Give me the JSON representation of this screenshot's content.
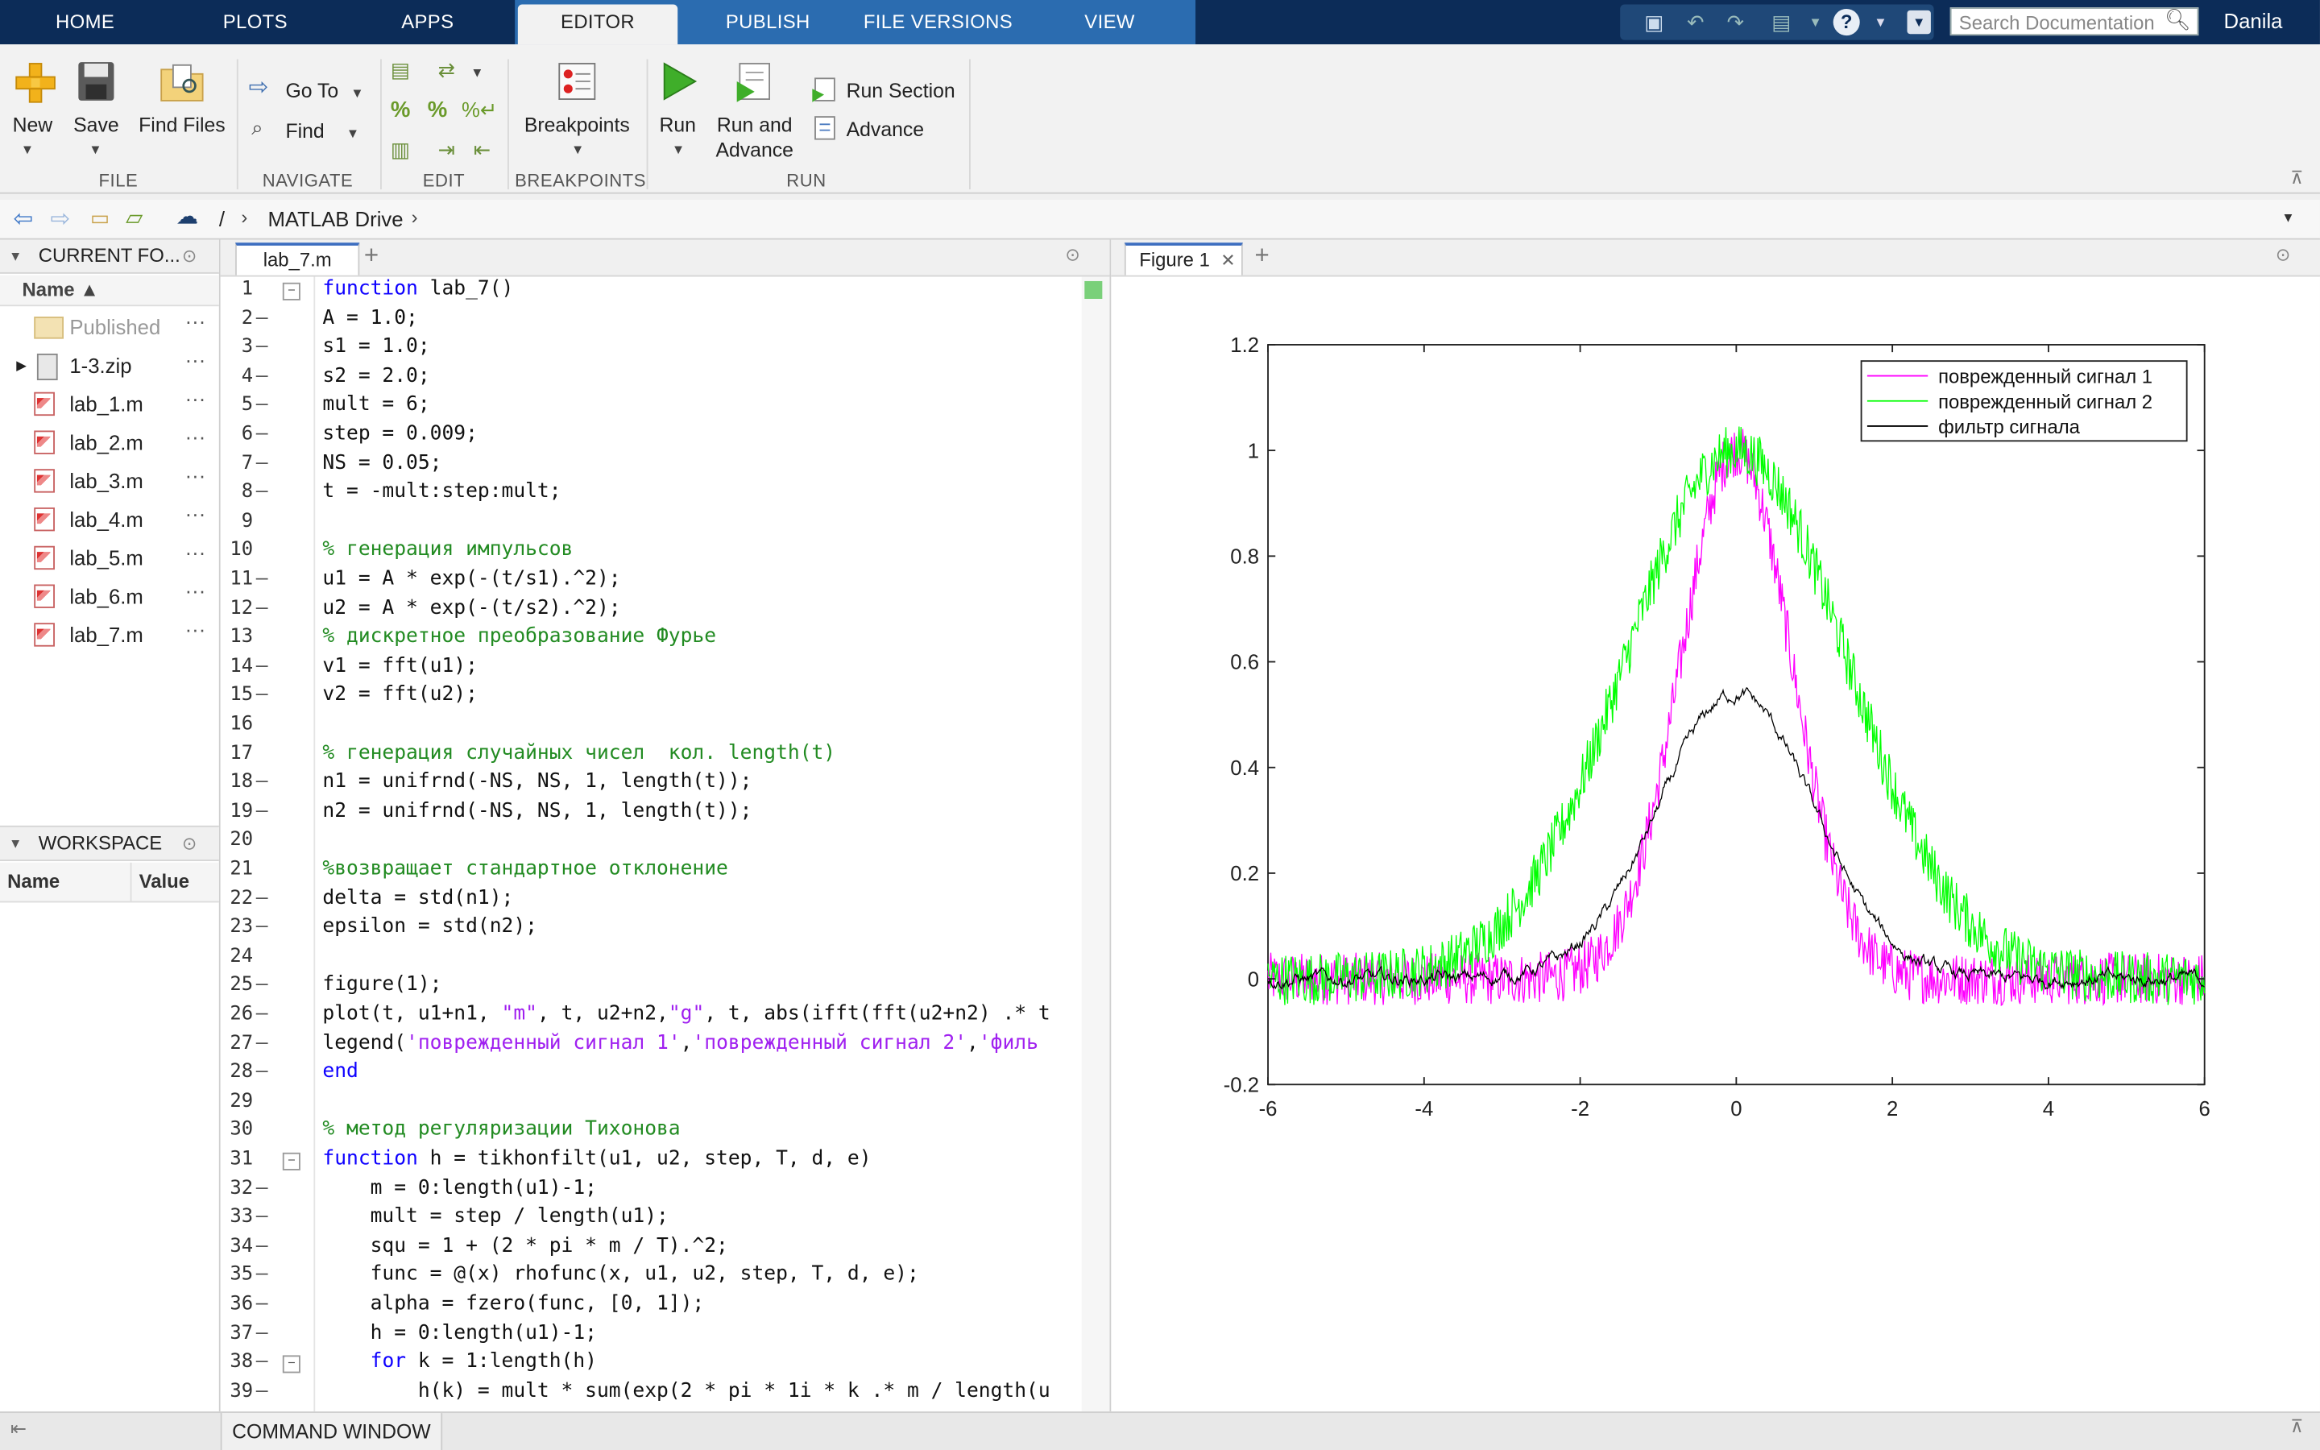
{
  "tabs": [
    "HOME",
    "PLOTS",
    "APPS",
    "EDITOR",
    "PUBLISH",
    "FILE VERSIONS",
    "VIEW"
  ],
  "active_tab": "EDITOR",
  "search_placeholder": "Search Documentation",
  "user": "Danila",
  "ribbon": {
    "new": "New",
    "save": "Save",
    "find_files": "Find Files",
    "go_to": "Go To",
    "find": "Find",
    "breakpoints": "Breakpoints",
    "run": "Run",
    "run_and_advance_1": "Run and",
    "run_and_advance_2": "Advance",
    "run_section": "Run Section",
    "advance": "Advance",
    "groups": [
      "FILE",
      "NAVIGATE",
      "EDIT",
      "BREAKPOINTS",
      "RUN"
    ]
  },
  "address": {
    "root": "/",
    "folder": "MATLAB Drive"
  },
  "current_folder": {
    "title": "CURRENT FO...",
    "col_name": "Name ▲",
    "files": [
      "Published",
      "1-3.zip",
      "lab_1.m",
      "lab_2.m",
      "lab_3.m",
      "lab_4.m",
      "lab_5.m",
      "lab_6.m",
      "lab_7.m"
    ]
  },
  "workspace": {
    "title": "WORKSPACE",
    "col_name": "Name",
    "col_value": "Value"
  },
  "editor": {
    "tab": "lab_7.m",
    "lines": [
      {
        "n": "1",
        "d": "",
        "html": "<span class='kw'>function</span> lab_7()"
      },
      {
        "n": "2",
        "d": "–",
        "html": "A = 1.0;"
      },
      {
        "n": "3",
        "d": "–",
        "html": "s1 = 1.0;"
      },
      {
        "n": "4",
        "d": "–",
        "html": "s2 = 2.0;"
      },
      {
        "n": "5",
        "d": "–",
        "html": "mult = 6;"
      },
      {
        "n": "6",
        "d": "–",
        "html": "step = 0.009;"
      },
      {
        "n": "7",
        "d": "–",
        "html": "NS = 0.05;"
      },
      {
        "n": "8",
        "d": "–",
        "html": "t = -mult:step:mult;"
      },
      {
        "n": "9",
        "d": "",
        "html": ""
      },
      {
        "n": "10",
        "d": "",
        "html": "<span class='cm'>% генерация импульсов</span>"
      },
      {
        "n": "11",
        "d": "–",
        "html": "u1 = A * exp(-(t/s1).^2);"
      },
      {
        "n": "12",
        "d": "–",
        "html": "u2 = A * exp(-(t/s2).^2);"
      },
      {
        "n": "13",
        "d": "",
        "html": "<span class='cm'>% дискретное преобразование Фурье</span>"
      },
      {
        "n": "14",
        "d": "–",
        "html": "v1 = fft(u1);"
      },
      {
        "n": "15",
        "d": "–",
        "html": "v2 = fft(u2);"
      },
      {
        "n": "16",
        "d": "",
        "html": ""
      },
      {
        "n": "17",
        "d": "",
        "html": "<span class='cm'>% генерация случайных чисел  кол. length(t)</span>"
      },
      {
        "n": "18",
        "d": "–",
        "html": "n1 = unifrnd(-NS, NS, 1, length(t));"
      },
      {
        "n": "19",
        "d": "–",
        "html": "n2 = unifrnd(-NS, NS, 1, length(t));"
      },
      {
        "n": "20",
        "d": "",
        "html": ""
      },
      {
        "n": "21",
        "d": "",
        "html": "<span class='cm'>%возвращает стандартное отклонение</span>"
      },
      {
        "n": "22",
        "d": "–",
        "html": "delta = std(n1);"
      },
      {
        "n": "23",
        "d": "–",
        "html": "epsilon = std(n2);"
      },
      {
        "n": "24",
        "d": "",
        "html": ""
      },
      {
        "n": "25",
        "d": "–",
        "html": "figure(1);"
      },
      {
        "n": "26",
        "d": "–",
        "html": "plot(t, u1+n1, <span class='st'>\"m\"</span>, t, u2+n2,<span class='st'>\"g\"</span>, t, abs(ifft(fft(u2+n2) .* t"
      },
      {
        "n": "27",
        "d": "–",
        "html": "legend(<span class='st'>'поврежденный сигнал 1'</span>,<span class='st'>'поврежденный сигнал 2'</span>,<span class='st'>'филь</span>"
      },
      {
        "n": "28",
        "d": "–",
        "html": "<span class='kw'>end</span>"
      },
      {
        "n": "29",
        "d": "",
        "html": ""
      },
      {
        "n": "30",
        "d": "",
        "html": "<span class='cm'>% метод регуляризации Тихонова</span>"
      },
      {
        "n": "31",
        "d": "",
        "html": "<span class='kw'>function</span> h = tikhonfilt(u1, u2, step, T, d, e)"
      },
      {
        "n": "32",
        "d": "–",
        "html": "    m = 0:length(u1)-1;"
      },
      {
        "n": "33",
        "d": "–",
        "html": "    mult = step / length(u1);"
      },
      {
        "n": "34",
        "d": "–",
        "html": "    squ = 1 + (2 * pi * m / T).^2;"
      },
      {
        "n": "35",
        "d": "–",
        "html": "    func = @(x) rhofunc(x, u1, u2, step, T, d, e);"
      },
      {
        "n": "36",
        "d": "–",
        "html": "    alpha = fzero(func, [0, 1]);"
      },
      {
        "n": "37",
        "d": "–",
        "html": "    h = 0:length(u1)-1;"
      },
      {
        "n": "38",
        "d": "–",
        "html": "    <span class='kw'>for</span> k = 1:length(h)"
      },
      {
        "n": "39",
        "d": "–",
        "html": "        h(k) = mult * sum(exp(2 * pi * 1i * k .* m / length(u"
      }
    ]
  },
  "figure": {
    "tab": "Figure 1"
  },
  "chart_data": {
    "type": "line",
    "xlim": [
      -6,
      6
    ],
    "ylim": [
      -0.2,
      1.2
    ],
    "xticks": [
      -6,
      -4,
      -2,
      0,
      2,
      4,
      6
    ],
    "yticks": [
      -0.2,
      0,
      0.2,
      0.4,
      0.6,
      0.8,
      1,
      1.2
    ],
    "ytick_labels": [
      "-0.2",
      "0",
      "0.2",
      "0.4",
      "0.6",
      "0.8",
      "1",
      "1.2"
    ],
    "legend_placement": "top-right",
    "series": [
      {
        "name": "поврежденный сигнал 1",
        "color": "#ff00ff",
        "amplitude": 1.0,
        "sigma": 1.0,
        "noise": 0.05
      },
      {
        "name": "поврежденный сигнал 2",
        "color": "#00ff00",
        "amplitude": 1.0,
        "sigma": 2.0,
        "noise": 0.05
      },
      {
        "name": "фильтр сигнала",
        "color": "#000000",
        "amplitude": 0.54,
        "sigma": 1.4,
        "noise": 0.008
      }
    ]
  },
  "command_window": "COMMAND WINDOW"
}
